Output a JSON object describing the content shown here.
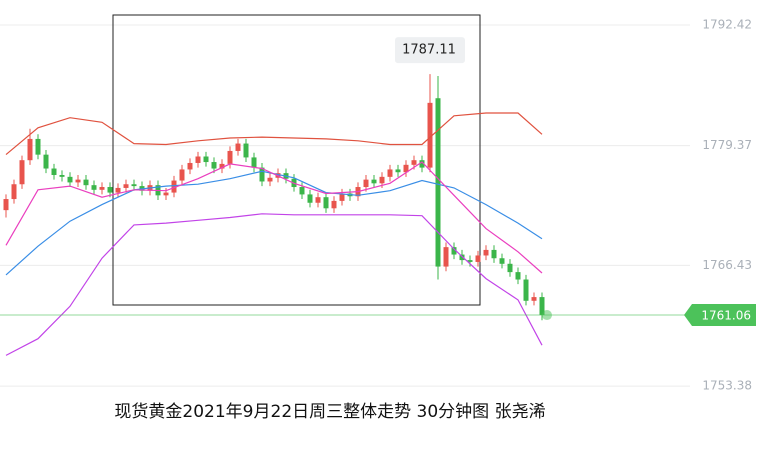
{
  "chart_data": {
    "type": "candlestick",
    "title": "现货黄金2021年9月22日周三整体走势 30分钟图 张尧浠",
    "ylim": [
      1746.36,
      1795.12
    ],
    "yticks": [
      1753.38,
      1766.43,
      1779.37,
      1792.42
    ],
    "grid": true,
    "up_color": "#e8544d",
    "down_color": "#3bb54a",
    "max_label": 1787.11,
    "last_price": 1761.06,
    "last_price_color": "#4cc25a",
    "open": [
      1772.4,
      1773.6,
      1775.2,
      1777.8,
      1780.1,
      1778.4,
      1776.9,
      1776.2,
      1776.0,
      1775.4,
      1775.7,
      1775.1,
      1774.6,
      1774.9,
      1774.3,
      1774.8,
      1775.2,
      1775.0,
      1774.5,
      1775.1,
      1774.0,
      1774.3,
      1775.6,
      1776.8,
      1777.5,
      1778.2,
      1777.6,
      1776.9,
      1777.4,
      1778.8,
      1779.6,
      1778.1,
      1777.0,
      1775.5,
      1775.9,
      1776.4,
      1775.8,
      1774.9,
      1774.1,
      1773.2,
      1773.8,
      1772.6,
      1773.4,
      1774.2,
      1773.9,
      1774.9,
      1775.7,
      1775.3,
      1776.0,
      1776.8,
      1776.5,
      1777.3,
      1777.8,
      1777.0,
      1784.5,
      1766.3,
      1768.4,
      1767.6,
      1767.0,
      1766.8,
      1767.5,
      1768.1,
      1767.2,
      1766.6,
      1765.7,
      1764.9,
      1762.6,
      1763.0
    ],
    "high": [
      1774.1,
      1775.7,
      1778.3,
      1781.2,
      1780.6,
      1778.9,
      1777.4,
      1776.7,
      1776.5,
      1776.2,
      1776.2,
      1775.6,
      1775.4,
      1775.4,
      1775.3,
      1775.7,
      1775.7,
      1775.5,
      1775.6,
      1775.6,
      1774.8,
      1776.1,
      1777.3,
      1778.0,
      1778.7,
      1778.7,
      1778.1,
      1777.9,
      1779.3,
      1780.1,
      1780.1,
      1778.6,
      1777.5,
      1776.4,
      1776.9,
      1776.9,
      1776.3,
      1775.4,
      1774.6,
      1774.3,
      1774.3,
      1773.9,
      1774.7,
      1774.7,
      1775.4,
      1776.2,
      1776.2,
      1776.5,
      1777.3,
      1777.3,
      1777.8,
      1778.3,
      1778.3,
      1787.11,
      1786.9,
      1768.9,
      1768.9,
      1768.1,
      1767.5,
      1768.0,
      1768.6,
      1768.6,
      1767.7,
      1767.1,
      1766.2,
      1765.4,
      1763.5,
      1763.5
    ],
    "low": [
      1771.6,
      1773.1,
      1774.7,
      1777.3,
      1777.9,
      1776.4,
      1775.7,
      1775.5,
      1774.9,
      1774.9,
      1774.6,
      1774.1,
      1774.1,
      1773.8,
      1773.8,
      1774.3,
      1774.5,
      1774.0,
      1774.0,
      1773.5,
      1773.5,
      1773.8,
      1775.1,
      1776.3,
      1777.0,
      1777.1,
      1776.4,
      1776.4,
      1776.9,
      1778.3,
      1777.6,
      1776.5,
      1775.0,
      1775.0,
      1775.4,
      1775.3,
      1774.4,
      1773.6,
      1772.7,
      1772.7,
      1772.1,
      1772.1,
      1772.9,
      1773.4,
      1773.4,
      1774.4,
      1774.8,
      1774.8,
      1775.5,
      1776.0,
      1776.0,
      1776.8,
      1776.5,
      1776.5,
      1764.9,
      1765.8,
      1767.1,
      1766.5,
      1766.3,
      1766.3,
      1767.0,
      1766.7,
      1766.1,
      1765.2,
      1764.4,
      1762.1,
      1762.1,
      1760.5
    ],
    "close": [
      1773.6,
      1775.2,
      1777.8,
      1780.1,
      1778.4,
      1776.9,
      1776.2,
      1776.0,
      1775.4,
      1775.7,
      1775.1,
      1774.6,
      1774.9,
      1774.3,
      1774.8,
      1775.2,
      1775.0,
      1774.5,
      1775.1,
      1774.0,
      1774.3,
      1775.6,
      1776.8,
      1777.5,
      1778.2,
      1777.6,
      1776.9,
      1777.4,
      1778.8,
      1779.6,
      1778.1,
      1777.0,
      1775.5,
      1775.9,
      1776.4,
      1775.8,
      1774.9,
      1774.1,
      1773.2,
      1773.8,
      1772.6,
      1773.4,
      1774.2,
      1773.9,
      1774.9,
      1775.7,
      1775.3,
      1776.0,
      1776.8,
      1776.5,
      1777.3,
      1777.8,
      1777.0,
      1784.0,
      1766.3,
      1768.4,
      1767.6,
      1767.0,
      1766.8,
      1767.5,
      1768.1,
      1767.2,
      1766.6,
      1765.7,
      1764.9,
      1762.6,
      1763.0,
      1761.06
    ],
    "line_x": [
      0,
      4,
      8,
      12,
      16,
      20,
      24,
      28,
      32,
      36,
      40,
      44,
      48,
      52,
      56,
      60,
      64,
      67
    ],
    "lines": [
      {
        "color": "#e0523f",
        "values": [
          1778.4,
          1781.3,
          1782.4,
          1781.9,
          1779.6,
          1779.5,
          1779.9,
          1780.2,
          1780.3,
          1780.2,
          1780.1,
          1779.9,
          1779.5,
          1779.5,
          1782.6,
          1782.9,
          1782.9,
          1780.6
        ]
      },
      {
        "color": "#3a8ee6",
        "values": [
          1765.4,
          1768.5,
          1771.2,
          1773.0,
          1774.6,
          1775.0,
          1775.2,
          1775.8,
          1776.6,
          1775.9,
          1774.3,
          1774.0,
          1774.5,
          1775.6,
          1774.8,
          1773.0,
          1771.0,
          1769.3
        ]
      },
      {
        "color": "#c244e8",
        "values": [
          1756.7,
          1758.5,
          1762.0,
          1767.2,
          1770.8,
          1771.0,
          1771.3,
          1771.6,
          1772.0,
          1771.9,
          1771.9,
          1771.9,
          1771.9,
          1771.8,
          1768.2,
          1765.0,
          1762.7,
          1757.8
        ]
      },
      {
        "color": "#ea3fbf",
        "values": [
          1768.6,
          1774.6,
          1775.0,
          1773.8,
          1774.6,
          1774.5,
          1775.8,
          1777.4,
          1776.9,
          1775.3,
          1774.2,
          1774.4,
          1775.3,
          1777.6,
          1774.0,
          1770.4,
          1767.9,
          1765.6
        ]
      }
    ]
  }
}
